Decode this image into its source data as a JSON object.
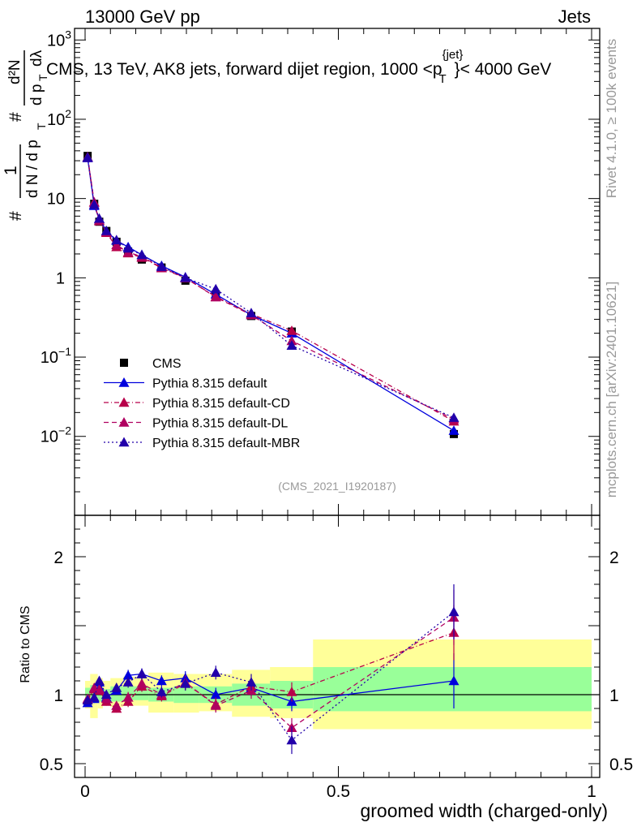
{
  "header": {
    "energy_label": "13000 GeV pp",
    "category_label": "Jets",
    "rivet_label": "Rivet 4.1.0, ≥ 100k events",
    "mcplots_label": "mcplots.cern.ch [arXiv:2401.10621]",
    "analysis_id": "(CMS_2021_I1920187)"
  },
  "chart_data": [
    {
      "type": "scatter",
      "panel": "main",
      "title": "CMS, 13 TeV, AK8 jets, forward dijet region, 1000 < p_T^{jet} < 4000 GeV",
      "title_parts": {
        "main": "CMS, 13 TeV, AK8 jets, forward dijet region, 1000 <p",
        "sup": "{jet}",
        "sub": "T",
        "end": "}< 4000 GeV"
      },
      "ylabel_parts": {
        "lead": "#",
        "one": "1",
        "den": "d N / d p",
        "sub": "T",
        "num": "d²N",
        "numden": "d p",
        "numden_sub": "T",
        "numden_end": "dλ"
      },
      "xlabel": "groomed width (charged-only)",
      "yscale": "log",
      "xlim": [
        0,
        1
      ],
      "ylim": [
        0.00101,
        1400
      ],
      "y_ticks": [
        {
          "value": 1000,
          "base": "10",
          "exp": "3"
        },
        {
          "value": 100,
          "base": "10",
          "exp": "2"
        },
        {
          "value": 10,
          "base": "10",
          "exp": ""
        },
        {
          "value": 1,
          "base": "1",
          "exp": ""
        },
        {
          "value": 0.1,
          "base": "10",
          "exp": "−1"
        },
        {
          "value": 0.01,
          "base": "10",
          "exp": "−2"
        }
      ],
      "x": [
        0.005,
        0.018,
        0.028,
        0.042,
        0.062,
        0.085,
        0.112,
        0.151,
        0.198,
        0.258,
        0.328,
        0.408,
        0.728
      ],
      "legend_position": "lower-left",
      "series": [
        {
          "name": "CMS",
          "style": "data",
          "color": "#000000",
          "values": [
            34.5,
            8.6,
            5.1,
            3.9,
            2.85,
            2.15,
            1.7,
            1.35,
            0.92,
            0.62,
            0.33,
            0.21,
            0.0107
          ]
        },
        {
          "name": "Pythia 8.315 default",
          "style": "solid",
          "color": "#0000dd",
          "values": [
            32.5,
            8.1,
            5.5,
            3.9,
            2.95,
            2.45,
            1.95,
            1.42,
            1.02,
            0.62,
            0.34,
            0.2,
            0.0118
          ]
        },
        {
          "name": "Pythia 8.315 default-CD",
          "style": "dashdot",
          "color": "#b8004a",
          "values": [
            33.0,
            8.9,
            5.2,
            3.7,
            2.45,
            2.05,
            1.8,
            1.33,
            0.99,
            0.58,
            0.35,
            0.215,
            0.0155
          ]
        },
        {
          "name": "Pythia 8.315 default-DL",
          "style": "dashed",
          "color": "#b00060",
          "values": [
            33.5,
            9.0,
            5.3,
            3.8,
            2.6,
            2.1,
            1.85,
            1.35,
            1.0,
            0.57,
            0.34,
            0.16,
            0.0165
          ]
        },
        {
          "name": "Pythia 8.315 default-MBR",
          "style": "dotted",
          "color": "#2200aa",
          "values": [
            33.0,
            8.4,
            5.6,
            3.9,
            3.0,
            2.35,
            1.95,
            1.38,
            1.0,
            0.72,
            0.36,
            0.14,
            0.0172
          ]
        }
      ]
    },
    {
      "type": "scatter",
      "panel": "ratio",
      "ylabel": "Ratio to CMS",
      "xlabel": "groomed width (charged-only)",
      "xlim": [
        0,
        1
      ],
      "ylim": [
        0.4,
        2.3
      ],
      "x_ticks": [
        {
          "value": 0,
          "label": "0"
        },
        {
          "value": 0.5,
          "label": "0.5"
        },
        {
          "value": 1,
          "label": "1"
        }
      ],
      "y_ticks": [
        {
          "value": 0.5,
          "label": "0.5"
        },
        {
          "value": 1,
          "label": "1"
        },
        {
          "value": 2,
          "label": "2"
        }
      ],
      "bins": [
        0,
        0.01,
        0.025,
        0.035,
        0.05,
        0.075,
        0.1,
        0.125,
        0.175,
        0.225,
        0.29,
        0.365,
        0.45,
        1.0
      ],
      "band_inner": [
        [
          0.95,
          1.05
        ],
        [
          0.94,
          1.07
        ],
        [
          0.95,
          1.05
        ],
        [
          0.96,
          1.04
        ],
        [
          0.95,
          1.06
        ],
        [
          0.96,
          1.06
        ],
        [
          0.96,
          1.06
        ],
        [
          0.95,
          1.05
        ],
        [
          0.94,
          1.06
        ],
        [
          0.94,
          1.06
        ],
        [
          0.92,
          1.08
        ],
        [
          0.9,
          1.1
        ],
        [
          0.88,
          1.2
        ]
      ],
      "band_outer": [
        [
          0.9,
          1.1
        ],
        [
          0.83,
          1.15
        ],
        [
          0.9,
          1.12
        ],
        [
          0.92,
          1.1
        ],
        [
          0.91,
          1.12
        ],
        [
          0.92,
          1.13
        ],
        [
          0.92,
          1.13
        ],
        [
          0.87,
          1.16
        ],
        [
          0.87,
          1.15
        ],
        [
          0.88,
          1.15
        ],
        [
          0.84,
          1.18
        ],
        [
          0.83,
          1.2
        ],
        [
          0.75,
          1.4
        ]
      ],
      "series": [
        {
          "name": "Pythia 8.315 default",
          "values": [
            0.94,
            0.97,
            1.09,
            0.98,
            1.03,
            1.14,
            1.15,
            1.1,
            1.12,
            1.0,
            1.05,
            0.95,
            1.1
          ],
          "errors": [
            0.02,
            0.03,
            0.03,
            0.03,
            0.03,
            0.04,
            0.04,
            0.04,
            0.05,
            0.05,
            0.06,
            0.07,
            0.2
          ]
        },
        {
          "name": "Pythia 8.315 default-CD",
          "values": [
            0.96,
            1.04,
            1.03,
            0.95,
            0.9,
            0.95,
            1.06,
            0.99,
            1.08,
            0.93,
            1.06,
            1.02,
            1.45
          ],
          "errors": [
            0.02,
            0.03,
            0.03,
            0.03,
            0.03,
            0.04,
            0.04,
            0.04,
            0.05,
            0.05,
            0.06,
            0.07,
            0.2
          ]
        },
        {
          "name": "Pythia 8.315 default-DL",
          "values": [
            0.97,
            1.05,
            1.04,
            0.97,
            0.92,
            0.98,
            1.08,
            1.0,
            1.09,
            0.92,
            1.03,
            0.76,
            1.56
          ],
          "errors": [
            0.02,
            0.03,
            0.03,
            0.03,
            0.03,
            0.04,
            0.04,
            0.04,
            0.05,
            0.05,
            0.06,
            0.07,
            0.2
          ]
        },
        {
          "name": "Pythia 8.315 default-MBR",
          "values": [
            0.96,
            0.98,
            1.1,
            1.0,
            1.05,
            1.09,
            1.15,
            1.02,
            1.08,
            1.16,
            1.09,
            0.67,
            1.6
          ],
          "errors": [
            0.02,
            0.03,
            0.03,
            0.03,
            0.03,
            0.04,
            0.04,
            0.04,
            0.05,
            0.05,
            0.06,
            0.1,
            0.2
          ]
        }
      ]
    }
  ]
}
